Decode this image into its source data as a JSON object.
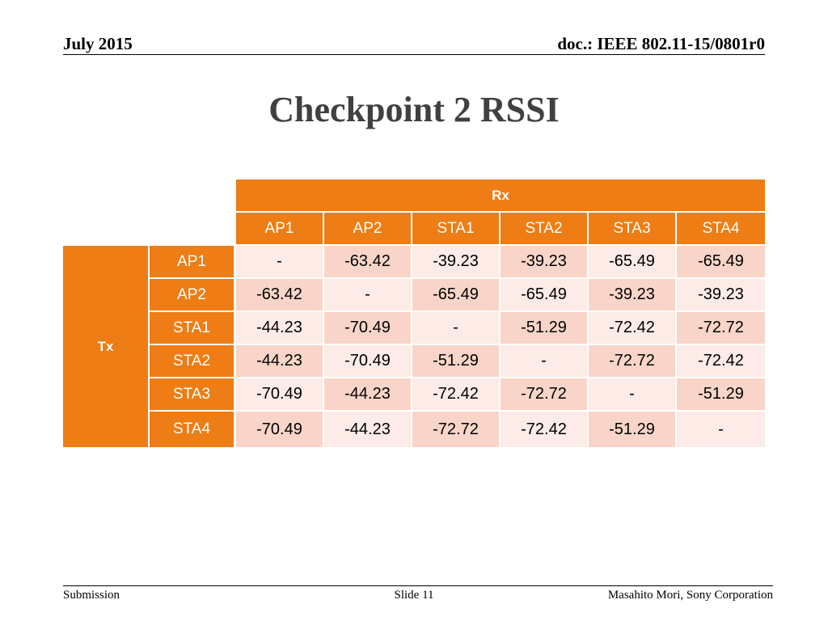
{
  "header": {
    "date": "July 2015",
    "doc": "doc.: IEEE 802.11-15/0801r0"
  },
  "title": "Checkpoint 2 RSSI",
  "table": {
    "rx_label": "Rx",
    "tx_label": "Tx",
    "columns": [
      "AP1",
      "AP2",
      "STA1",
      "STA2",
      "STA3",
      "STA4"
    ],
    "rows": [
      {
        "label": "AP1",
        "values": [
          "-",
          "-63.42",
          "-39.23",
          "-39.23",
          "-65.49",
          "-65.49"
        ]
      },
      {
        "label": "AP2",
        "values": [
          "-63.42",
          "-",
          "-65.49",
          "-65.49",
          "-39.23",
          "-39.23"
        ]
      },
      {
        "label": "STA1",
        "values": [
          "-44.23",
          "-70.49",
          "-",
          "-51.29",
          "-72.42",
          "-72.72"
        ]
      },
      {
        "label": "STA2",
        "values": [
          "-44.23",
          "-70.49",
          "-51.29",
          "-",
          "-72.72",
          "-72.42"
        ]
      },
      {
        "label": "STA3",
        "values": [
          "-70.49",
          "-44.23",
          "-72.42",
          "-72.72",
          "-",
          "-51.29"
        ]
      },
      {
        "label": "STA4",
        "values": [
          "-70.49",
          "-44.23",
          "-72.72",
          "-72.42",
          "-51.29",
          "-"
        ]
      }
    ]
  },
  "footer": {
    "left": "Submission",
    "center": "Slide 11",
    "right": "Masahito Mori, Sony Corporation"
  },
  "colors": {
    "header_orange": "#ed7d14",
    "cell_light": "#fcebe6",
    "cell_dark": "#f8d5c8",
    "title_gray": "#404040"
  }
}
